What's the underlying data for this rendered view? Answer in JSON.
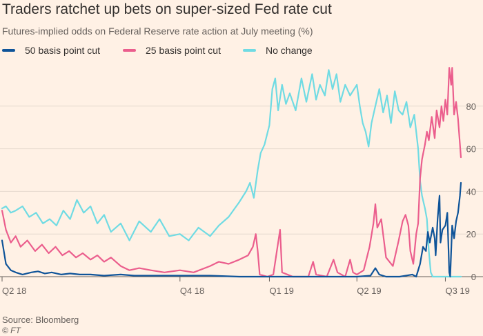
{
  "title": "Traders ratchet up bets on super-sized Fed rate cut",
  "subtitle": "Futures-implied odds on Federal Reserve rate action at July meeting (%)",
  "source": "Source: Bloomberg",
  "copyright": "© FT",
  "colors": {
    "background": "#fff1e5",
    "grid": "#e6d9ce",
    "axis": "#66605c",
    "fifty": "#0f5499",
    "twentyfive": "#eb5e8d",
    "nochange": "#70dbe3"
  },
  "chart_data": {
    "type": "line",
    "title": "Traders ratchet up bets on super-sized Fed rate cut",
    "subtitle": "Futures-implied odds on Federal Reserve rate action at July meeting (%)",
    "xlabel": "",
    "ylabel": "",
    "x_ticks": [
      "Q2 18",
      "Q4 18",
      "Q1 19",
      "Q2 19",
      "Q3 19"
    ],
    "x_tick_dates": [
      "2018-04-01",
      "2018-10-01",
      "2019-01-01",
      "2019-04-01",
      "2019-07-01"
    ],
    "x_range": [
      "2018-04-01",
      "2019-07-17"
    ],
    "ylim": [
      0,
      100
    ],
    "y_ticks": [
      0,
      20,
      40,
      60,
      80
    ],
    "y_axis_side": "right",
    "grid": true,
    "legend_position": "top-left",
    "series": [
      {
        "name": "50 basis point cut",
        "color": "#0f5499",
        "points": [
          [
            "2018-04-01",
            17
          ],
          [
            "2018-04-05",
            6
          ],
          [
            "2018-04-10",
            3
          ],
          [
            "2018-04-15",
            2
          ],
          [
            "2018-04-22",
            1
          ],
          [
            "2018-05-01",
            2
          ],
          [
            "2018-05-08",
            2.5
          ],
          [
            "2018-05-15",
            1.5
          ],
          [
            "2018-05-22",
            2
          ],
          [
            "2018-06-01",
            1
          ],
          [
            "2018-06-10",
            1.5
          ],
          [
            "2018-06-20",
            1
          ],
          [
            "2018-07-01",
            1
          ],
          [
            "2018-07-15",
            0.5
          ],
          [
            "2018-08-01",
            1
          ],
          [
            "2018-08-15",
            0.5
          ],
          [
            "2018-09-01",
            0.5
          ],
          [
            "2018-10-01",
            0.5
          ],
          [
            "2018-11-01",
            0.5
          ],
          [
            "2018-12-01",
            0
          ],
          [
            "2019-01-01",
            0
          ],
          [
            "2019-02-01",
            0
          ],
          [
            "2019-03-01",
            0
          ],
          [
            "2019-04-01",
            0
          ],
          [
            "2019-04-15",
            0.5
          ],
          [
            "2019-04-20",
            4
          ],
          [
            "2019-04-24",
            1
          ],
          [
            "2019-05-01",
            0
          ],
          [
            "2019-05-15",
            0
          ],
          [
            "2019-05-28",
            1
          ],
          [
            "2019-06-01",
            0
          ],
          [
            "2019-06-05",
            6
          ],
          [
            "2019-06-08",
            14
          ],
          [
            "2019-06-11",
            12
          ],
          [
            "2019-06-13",
            21
          ],
          [
            "2019-06-15",
            16
          ],
          [
            "2019-06-18",
            23
          ],
          [
            "2019-06-20",
            18
          ],
          [
            "2019-06-21",
            10
          ],
          [
            "2019-06-23",
            27
          ],
          [
            "2019-06-25",
            38
          ],
          [
            "2019-06-26",
            16
          ],
          [
            "2019-06-28",
            22
          ],
          [
            "2019-07-01",
            24
          ],
          [
            "2019-07-03",
            30
          ],
          [
            "2019-07-05",
            2
          ],
          [
            "2019-07-06",
            0
          ],
          [
            "2019-07-08",
            24
          ],
          [
            "2019-07-10",
            18
          ],
          [
            "2019-07-12",
            26
          ],
          [
            "2019-07-14",
            30
          ],
          [
            "2019-07-16",
            38
          ],
          [
            "2019-07-17",
            44
          ]
        ]
      },
      {
        "name": "25 basis point cut",
        "color": "#eb5e8d",
        "points": [
          [
            "2018-04-01",
            31
          ],
          [
            "2018-04-05",
            22
          ],
          [
            "2018-04-10",
            16
          ],
          [
            "2018-04-15",
            19
          ],
          [
            "2018-04-20",
            14
          ],
          [
            "2018-04-27",
            17
          ],
          [
            "2018-05-05",
            12
          ],
          [
            "2018-05-12",
            15
          ],
          [
            "2018-05-19",
            11
          ],
          [
            "2018-05-26",
            14
          ],
          [
            "2018-06-02",
            10
          ],
          [
            "2018-06-09",
            12
          ],
          [
            "2018-06-16",
            9
          ],
          [
            "2018-06-23",
            11
          ],
          [
            "2018-07-01",
            8
          ],
          [
            "2018-07-08",
            10
          ],
          [
            "2018-07-15",
            7
          ],
          [
            "2018-07-22",
            9
          ],
          [
            "2018-08-01",
            5
          ],
          [
            "2018-08-10",
            3
          ],
          [
            "2018-08-20",
            4
          ],
          [
            "2018-09-01",
            3
          ],
          [
            "2018-09-15",
            2
          ],
          [
            "2018-10-01",
            3
          ],
          [
            "2018-10-15",
            2
          ],
          [
            "2018-11-01",
            5
          ],
          [
            "2018-11-10",
            7
          ],
          [
            "2018-11-20",
            6
          ],
          [
            "2018-12-01",
            8
          ],
          [
            "2018-12-10",
            10
          ],
          [
            "2018-12-15",
            14
          ],
          [
            "2018-12-18",
            20
          ],
          [
            "2018-12-20",
            12
          ],
          [
            "2018-12-22",
            1
          ],
          [
            "2018-12-30",
            0
          ],
          [
            "2019-01-05",
            1
          ],
          [
            "2019-01-12",
            22
          ],
          [
            "2019-01-14",
            2
          ],
          [
            "2019-01-25",
            0
          ],
          [
            "2019-02-10",
            0
          ],
          [
            "2019-02-15",
            7
          ],
          [
            "2019-02-18",
            1
          ],
          [
            "2019-03-01",
            0
          ],
          [
            "2019-03-08",
            8
          ],
          [
            "2019-03-12",
            2
          ],
          [
            "2019-03-20",
            0
          ],
          [
            "2019-03-25",
            8
          ],
          [
            "2019-03-28",
            2
          ],
          [
            "2019-04-01",
            1
          ],
          [
            "2019-04-08",
            3
          ],
          [
            "2019-04-14",
            14
          ],
          [
            "2019-04-18",
            25
          ],
          [
            "2019-04-20",
            34
          ],
          [
            "2019-04-22",
            23
          ],
          [
            "2019-04-26",
            27
          ],
          [
            "2019-05-01",
            9
          ],
          [
            "2019-05-08",
            5
          ],
          [
            "2019-05-14",
            17
          ],
          [
            "2019-05-18",
            26
          ],
          [
            "2019-05-21",
            29
          ],
          [
            "2019-05-24",
            24
          ],
          [
            "2019-05-26",
            12
          ],
          [
            "2019-05-29",
            6
          ],
          [
            "2019-06-01",
            20
          ],
          [
            "2019-06-03",
            25
          ],
          [
            "2019-06-05",
            46
          ],
          [
            "2019-06-07",
            55
          ],
          [
            "2019-06-10",
            62
          ],
          [
            "2019-06-12",
            68
          ],
          [
            "2019-06-14",
            64
          ],
          [
            "2019-06-17",
            75
          ],
          [
            "2019-06-20",
            65
          ],
          [
            "2019-06-22",
            78
          ],
          [
            "2019-06-25",
            70
          ],
          [
            "2019-06-27",
            80
          ],
          [
            "2019-06-29",
            73
          ],
          [
            "2019-07-01",
            83
          ],
          [
            "2019-07-03",
            76
          ],
          [
            "2019-07-05",
            98
          ],
          [
            "2019-07-07",
            90
          ],
          [
            "2019-07-08",
            98
          ],
          [
            "2019-07-10",
            76
          ],
          [
            "2019-07-12",
            82
          ],
          [
            "2019-07-14",
            74
          ],
          [
            "2019-07-17",
            56
          ]
        ]
      },
      {
        "name": "No change",
        "color": "#70dbe3",
        "points": [
          [
            "2018-04-01",
            32
          ],
          [
            "2018-04-05",
            33
          ],
          [
            "2018-04-10",
            30
          ],
          [
            "2018-04-15",
            31
          ],
          [
            "2018-04-22",
            33
          ],
          [
            "2018-04-29",
            28
          ],
          [
            "2018-05-06",
            30
          ],
          [
            "2018-05-13",
            25
          ],
          [
            "2018-05-20",
            27
          ],
          [
            "2018-05-27",
            24
          ],
          [
            "2018-06-03",
            31
          ],
          [
            "2018-06-10",
            27
          ],
          [
            "2018-06-17",
            36
          ],
          [
            "2018-06-24",
            30
          ],
          [
            "2018-07-01",
            33
          ],
          [
            "2018-07-08",
            25
          ],
          [
            "2018-07-15",
            29
          ],
          [
            "2018-07-22",
            21
          ],
          [
            "2018-08-01",
            25
          ],
          [
            "2018-08-10",
            17
          ],
          [
            "2018-08-20",
            26
          ],
          [
            "2018-09-01",
            21
          ],
          [
            "2018-09-10",
            27
          ],
          [
            "2018-09-20",
            19
          ],
          [
            "2018-10-01",
            20
          ],
          [
            "2018-10-10",
            17
          ],
          [
            "2018-10-20",
            23
          ],
          [
            "2018-11-01",
            19
          ],
          [
            "2018-11-10",
            24
          ],
          [
            "2018-11-20",
            28
          ],
          [
            "2018-12-01",
            35
          ],
          [
            "2018-12-08",
            40
          ],
          [
            "2018-12-12",
            44
          ],
          [
            "2018-12-16",
            37
          ],
          [
            "2018-12-20",
            50
          ],
          [
            "2018-12-23",
            58
          ],
          [
            "2018-12-27",
            62
          ],
          [
            "2019-01-01",
            71
          ],
          [
            "2019-01-04",
            88
          ],
          [
            "2019-01-07",
            93
          ],
          [
            "2019-01-10",
            78
          ],
          [
            "2019-01-14",
            90
          ],
          [
            "2019-01-18",
            81
          ],
          [
            "2019-01-22",
            86
          ],
          [
            "2019-01-28",
            78
          ],
          [
            "2019-02-03",
            93
          ],
          [
            "2019-02-08",
            82
          ],
          [
            "2019-02-14",
            95
          ],
          [
            "2019-02-18",
            83
          ],
          [
            "2019-02-22",
            90
          ],
          [
            "2019-02-27",
            85
          ],
          [
            "2019-03-03",
            97
          ],
          [
            "2019-03-07",
            88
          ],
          [
            "2019-03-11",
            95
          ],
          [
            "2019-03-15",
            82
          ],
          [
            "2019-03-20",
            90
          ],
          [
            "2019-03-25",
            85
          ],
          [
            "2019-04-01",
            90
          ],
          [
            "2019-04-04",
            80
          ],
          [
            "2019-04-07",
            72
          ],
          [
            "2019-04-10",
            68
          ],
          [
            "2019-04-13",
            61
          ],
          [
            "2019-04-16",
            72
          ],
          [
            "2019-04-20",
            80
          ],
          [
            "2019-04-24",
            88
          ],
          [
            "2019-04-28",
            77
          ],
          [
            "2019-05-02",
            85
          ],
          [
            "2019-05-06",
            72
          ],
          [
            "2019-05-10",
            87
          ],
          [
            "2019-05-14",
            78
          ],
          [
            "2019-05-18",
            76
          ],
          [
            "2019-05-22",
            82
          ],
          [
            "2019-05-26",
            70
          ],
          [
            "2019-05-30",
            76
          ],
          [
            "2019-06-01",
            68
          ],
          [
            "2019-06-03",
            60
          ],
          [
            "2019-06-05",
            45
          ],
          [
            "2019-06-07",
            38
          ],
          [
            "2019-06-10",
            32
          ],
          [
            "2019-06-12",
            27
          ],
          [
            "2019-06-14",
            12
          ],
          [
            "2019-06-16",
            2
          ],
          [
            "2019-06-18",
            0
          ],
          [
            "2019-07-17",
            0
          ]
        ]
      }
    ]
  }
}
